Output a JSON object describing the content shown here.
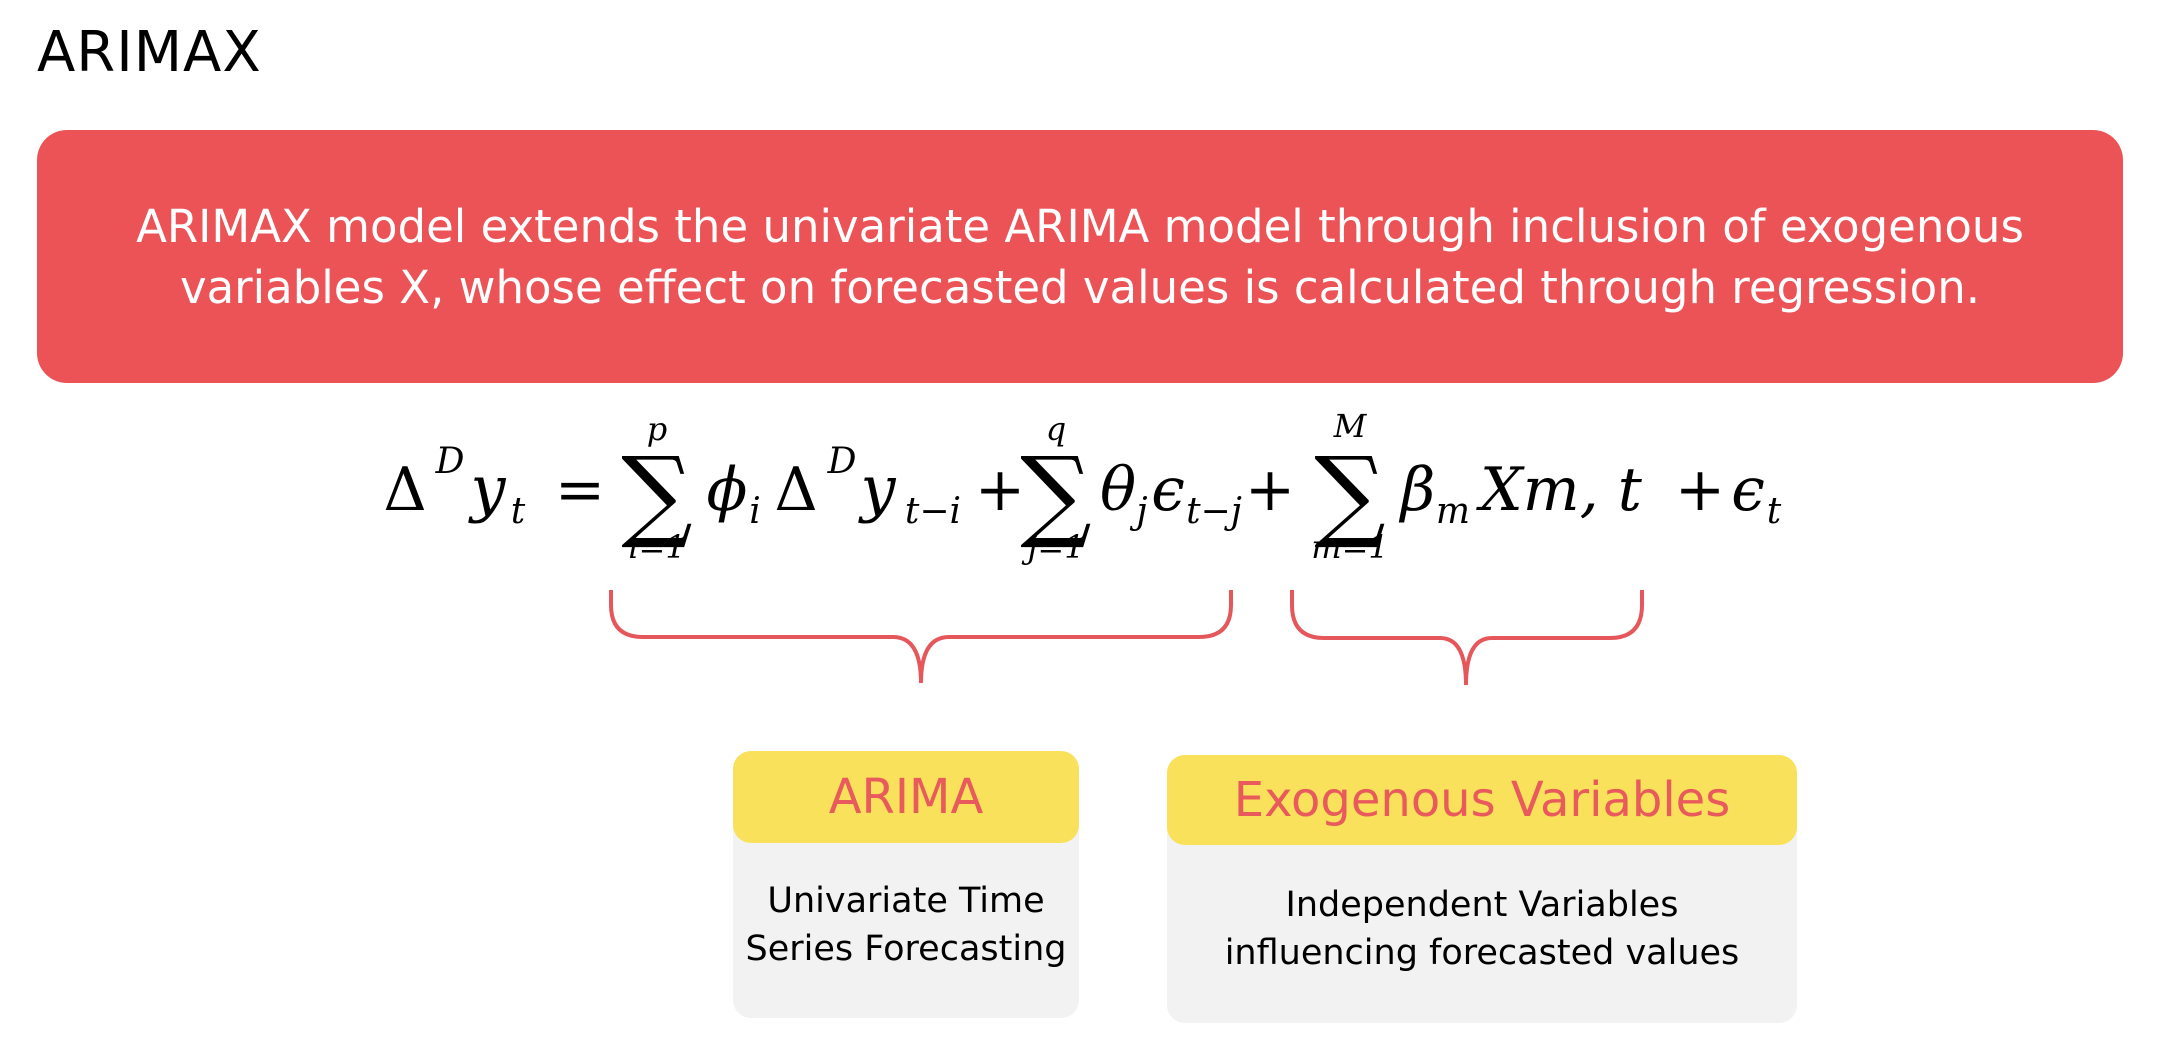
{
  "title": "ARIMAX",
  "banner": {
    "line1": "ARIMAX model extends the univariate ARIMA model through inclusion of exogenous",
    "line2": "variables X, whose effect on forecasted values is calculated through regression."
  },
  "equation": {
    "lhs_delta": "Δ",
    "lhs_sup": "D",
    "lhs_y": "y",
    "lhs_sub": "t",
    "equals": "=",
    "sum1_upper": "p",
    "sum1_lower": "i=1",
    "term1_phi": "ϕ",
    "term1_phi_sub": "i",
    "term1_delta": "Δ",
    "term1_sup": "D",
    "term1_y": "y",
    "term1_sub": "t−i",
    "plus1": "+",
    "sum2_upper": "q",
    "sum2_lower": "j=1",
    "term2_theta": "θ",
    "term2_theta_sub": "j",
    "term2_eps": "ϵ",
    "term2_eps_sub": "t−j",
    "plus2": "+",
    "sum3_upper": "M",
    "sum3_lower": "m=1",
    "term3_beta": "β",
    "term3_beta_sub": "m",
    "term3_rest": "Xm, t",
    "plus3": "+",
    "final_eps": "ϵ",
    "final_eps_sub": "t",
    "sigma": "∑"
  },
  "cards": {
    "arima": {
      "heading": "ARIMA",
      "line1": "Univariate Time",
      "line2": "Series Forecasting"
    },
    "exogenous": {
      "heading": "Exogenous Variables",
      "line1": "Independent Variables",
      "line2": "influencing forecasted values"
    }
  },
  "colors": {
    "banner": "#EB5357",
    "brace": "#E5575A",
    "card_heading_bg": "#FAE15B",
    "card_heading_text": "#E85A5B",
    "card_body_bg": "#F2F2F2"
  }
}
